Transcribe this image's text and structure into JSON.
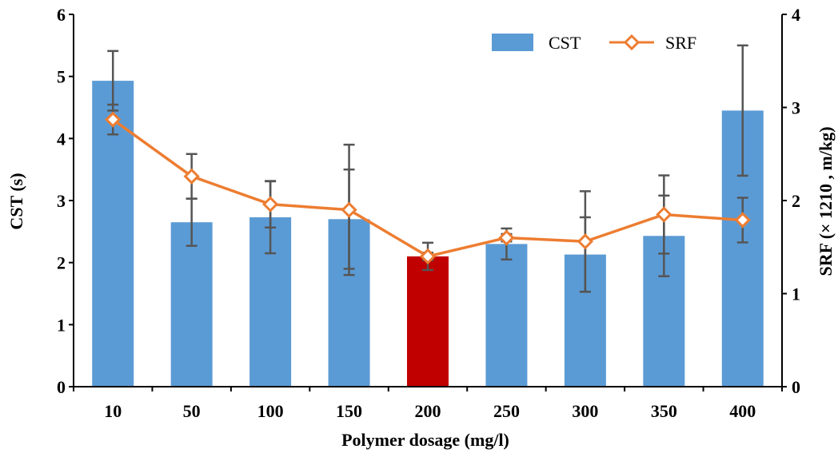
{
  "chart_data": {
    "type": "bar",
    "categories": [
      "10",
      "50",
      "100",
      "150",
      "200",
      "250",
      "300",
      "350",
      "400"
    ],
    "xlabel": "Polymer dosage (mg/l)",
    "ylabel": "CST (s)",
    "y2label": "SRF (× 1210 , m/kg)",
    "ylim": [
      0,
      6
    ],
    "y2lim": [
      0,
      4
    ],
    "yticks": [
      "0",
      "1",
      "2",
      "3",
      "4",
      "5",
      "6"
    ],
    "y2ticks": [
      "0",
      "1",
      "2",
      "3",
      "4"
    ],
    "grid": false,
    "legend_position": "top-right",
    "colors": {
      "bar": "#5b9bd5",
      "highlight_bar": "#c00000",
      "line": "#ed7d31",
      "error": "#555555"
    },
    "highlight_category": "200",
    "series": [
      {
        "name": "CST",
        "type": "bar",
        "axis": "left",
        "values": [
          4.93,
          2.65,
          2.73,
          2.7,
          2.1,
          2.3,
          2.13,
          2.43,
          4.45
        ],
        "error": [
          0.48,
          0.38,
          0.58,
          0.8,
          0.22,
          0.25,
          0.6,
          0.65,
          1.05
        ]
      },
      {
        "name": "SRF",
        "type": "line",
        "axis": "right",
        "values": [
          2.87,
          2.26,
          1.96,
          1.9,
          1.4,
          1.6,
          1.56,
          1.85,
          1.79
        ],
        "error": [
          0.16,
          0.24,
          0.25,
          0.7,
          0.04,
          0.04,
          0.54,
          0.42,
          0.24
        ]
      }
    ]
  }
}
